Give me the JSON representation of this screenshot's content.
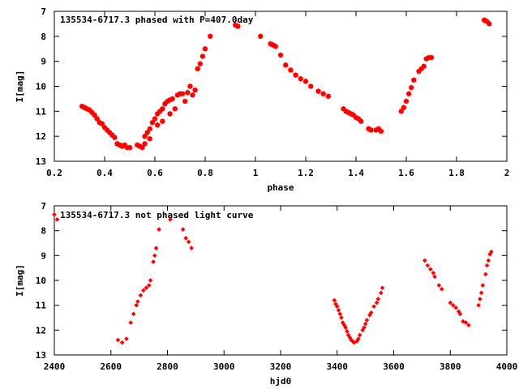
{
  "colors": {
    "points": "#ff0000",
    "axes": "#000000",
    "background": "#ffffff"
  },
  "chart_data": [
    {
      "type": "scatter",
      "title": "135534-6717.3 phased with P=407.0day",
      "xlabel": "phase",
      "ylabel": "I[mag]",
      "xlim": [
        0.2,
        2.0
      ],
      "ylim": [
        7,
        13
      ],
      "y_inverted": true,
      "grid": false,
      "legend": "none",
      "xticks": [
        0.2,
        0.4,
        0.6,
        0.8,
        1.0,
        1.2,
        1.4,
        1.6,
        1.8,
        2.0
      ],
      "xtick_labels": [
        "0.2",
        "0.4",
        "0.6",
        "0.8",
        "1",
        "1.2",
        "1.4",
        "1.6",
        "1.8",
        "2"
      ],
      "yticks": [
        7,
        8,
        9,
        10,
        11,
        12,
        13
      ],
      "ytick_labels": [
        "7",
        "8",
        "9",
        "10",
        "11",
        "12",
        "13"
      ],
      "series": [
        {
          "points": [
            [
              0.31,
              10.8
            ],
            [
              0.32,
              10.85
            ],
            [
              0.33,
              10.9
            ],
            [
              0.34,
              10.95
            ],
            [
              0.35,
              11.05
            ],
            [
              0.36,
              11.15
            ],
            [
              0.37,
              11.3
            ],
            [
              0.38,
              11.45
            ],
            [
              0.39,
              11.5
            ],
            [
              0.4,
              11.65
            ],
            [
              0.41,
              11.75
            ],
            [
              0.42,
              11.85
            ],
            [
              0.43,
              11.95
            ],
            [
              0.44,
              12.05
            ],
            [
              0.45,
              12.3
            ],
            [
              0.46,
              12.35
            ],
            [
              0.47,
              12.4
            ],
            [
              0.48,
              12.35
            ],
            [
              0.49,
              12.45
            ],
            [
              0.5,
              12.45
            ],
            [
              0.53,
              12.35
            ],
            [
              0.54,
              12.4
            ],
            [
              0.55,
              12.45
            ],
            [
              0.56,
              12.3
            ],
            [
              0.56,
              12.0
            ],
            [
              0.57,
              11.85
            ],
            [
              0.58,
              11.7
            ],
            [
              0.58,
              12.1
            ],
            [
              0.59,
              11.45
            ],
            [
              0.6,
              11.3
            ],
            [
              0.61,
              11.1
            ],
            [
              0.61,
              11.55
            ],
            [
              0.62,
              11.0
            ],
            [
              0.63,
              10.9
            ],
            [
              0.63,
              11.4
            ],
            [
              0.64,
              10.7
            ],
            [
              0.65,
              10.6
            ],
            [
              0.66,
              10.55
            ],
            [
              0.66,
              11.1
            ],
            [
              0.67,
              10.5
            ],
            [
              0.68,
              10.9
            ],
            [
              0.69,
              10.35
            ],
            [
              0.7,
              10.3
            ],
            [
              0.71,
              10.3
            ],
            [
              0.72,
              10.6
            ],
            [
              0.73,
              10.25
            ],
            [
              0.74,
              10.0
            ],
            [
              0.75,
              10.35
            ],
            [
              0.76,
              10.15
            ],
            [
              0.77,
              9.3
            ],
            [
              0.78,
              9.1
            ],
            [
              0.79,
              8.8
            ],
            [
              0.8,
              8.5
            ],
            [
              0.82,
              8.0
            ],
            [
              0.92,
              7.55
            ],
            [
              0.93,
              7.6
            ],
            [
              1.02,
              8.0
            ],
            [
              1.06,
              8.3
            ],
            [
              1.07,
              8.35
            ],
            [
              1.08,
              8.4
            ],
            [
              1.1,
              8.75
            ],
            [
              1.12,
              9.15
            ],
            [
              1.14,
              9.35
            ],
            [
              1.16,
              9.55
            ],
            [
              1.18,
              9.7
            ],
            [
              1.2,
              9.8
            ],
            [
              1.22,
              10.0
            ],
            [
              1.25,
              10.2
            ],
            [
              1.27,
              10.3
            ],
            [
              1.29,
              10.4
            ],
            [
              1.35,
              10.9
            ],
            [
              1.36,
              11.0
            ],
            [
              1.37,
              11.05
            ],
            [
              1.38,
              11.1
            ],
            [
              1.39,
              11.15
            ],
            [
              1.4,
              11.25
            ],
            [
              1.41,
              11.3
            ],
            [
              1.42,
              11.4
            ],
            [
              1.45,
              11.7
            ],
            [
              1.46,
              11.75
            ],
            [
              1.48,
              11.75
            ],
            [
              1.49,
              11.7
            ],
            [
              1.5,
              11.8
            ],
            [
              1.58,
              11.0
            ],
            [
              1.59,
              10.85
            ],
            [
              1.6,
              10.6
            ],
            [
              1.61,
              10.3
            ],
            [
              1.62,
              10.05
            ],
            [
              1.63,
              9.75
            ],
            [
              1.65,
              9.4
            ],
            [
              1.66,
              9.3
            ],
            [
              1.67,
              9.2
            ],
            [
              1.68,
              8.9
            ],
            [
              1.69,
              8.85
            ],
            [
              1.7,
              8.85
            ],
            [
              1.91,
              7.35
            ],
            [
              1.92,
              7.4
            ],
            [
              1.93,
              7.5
            ]
          ]
        }
      ]
    },
    {
      "type": "scatter",
      "title": "135534-6717.3 not phased light curve",
      "xlabel": "hjd0",
      "ylabel": "I[mag]",
      "xlim": [
        2400,
        4000
      ],
      "ylim": [
        7,
        13
      ],
      "y_inverted": true,
      "grid": false,
      "legend": "none",
      "xticks": [
        2400,
        2600,
        2800,
        3000,
        3200,
        3400,
        3600,
        3800,
        4000
      ],
      "xtick_labels": [
        "2400",
        "2600",
        "2800",
        "3000",
        "3200",
        "3400",
        "3600",
        "3800",
        "4000"
      ],
      "yticks": [
        7,
        8,
        9,
        10,
        11,
        12,
        13
      ],
      "ytick_labels": [
        "7",
        "8",
        "9",
        "10",
        "11",
        "12",
        "13"
      ],
      "series": [
        {
          "points": [
            [
              2400,
              7.35
            ],
            [
              2410,
              7.55
            ],
            [
              2625,
              12.4
            ],
            [
              2640,
              12.5
            ],
            [
              2655,
              12.35
            ],
            [
              2670,
              11.7
            ],
            [
              2680,
              11.35
            ],
            [
              2690,
              11.0
            ],
            [
              2695,
              10.85
            ],
            [
              2705,
              10.6
            ],
            [
              2715,
              10.4
            ],
            [
              2725,
              10.3
            ],
            [
              2735,
              10.2
            ],
            [
              2740,
              10.0
            ],
            [
              2750,
              9.25
            ],
            [
              2755,
              9.0
            ],
            [
              2760,
              8.7
            ],
            [
              2770,
              7.95
            ],
            [
              2810,
              7.55
            ],
            [
              2855,
              7.95
            ],
            [
              2865,
              8.3
            ],
            [
              2875,
              8.45
            ],
            [
              2885,
              8.7
            ],
            [
              3390,
              10.8
            ],
            [
              3395,
              10.95
            ],
            [
              3400,
              11.05
            ],
            [
              3405,
              11.2
            ],
            [
              3410,
              11.35
            ],
            [
              3415,
              11.5
            ],
            [
              3420,
              11.7
            ],
            [
              3425,
              11.8
            ],
            [
              3430,
              11.9
            ],
            [
              3435,
              12.05
            ],
            [
              3440,
              12.2
            ],
            [
              3445,
              12.3
            ],
            [
              3450,
              12.4
            ],
            [
              3455,
              12.45
            ],
            [
              3460,
              12.5
            ],
            [
              3470,
              12.45
            ],
            [
              3475,
              12.35
            ],
            [
              3480,
              12.2
            ],
            [
              3490,
              12.0
            ],
            [
              3495,
              11.9
            ],
            [
              3500,
              11.75
            ],
            [
              3505,
              11.6
            ],
            [
              3515,
              11.4
            ],
            [
              3520,
              11.3
            ],
            [
              3530,
              11.05
            ],
            [
              3540,
              10.9
            ],
            [
              3545,
              10.75
            ],
            [
              3555,
              10.5
            ],
            [
              3560,
              10.3
            ],
            [
              3710,
              9.2
            ],
            [
              3720,
              9.4
            ],
            [
              3730,
              9.55
            ],
            [
              3740,
              9.7
            ],
            [
              3745,
              9.85
            ],
            [
              3760,
              10.2
            ],
            [
              3770,
              10.35
            ],
            [
              3800,
              10.9
            ],
            [
              3810,
              11.0
            ],
            [
              3820,
              11.1
            ],
            [
              3830,
              11.25
            ],
            [
              3835,
              11.35
            ],
            [
              3845,
              11.65
            ],
            [
              3855,
              11.7
            ],
            [
              3865,
              11.8
            ],
            [
              3900,
              11.0
            ],
            [
              3905,
              10.75
            ],
            [
              3910,
              10.5
            ],
            [
              3915,
              10.2
            ],
            [
              3925,
              9.75
            ],
            [
              3930,
              9.4
            ],
            [
              3935,
              9.2
            ],
            [
              3940,
              8.95
            ],
            [
              3945,
              8.85
            ]
          ]
        }
      ]
    }
  ]
}
